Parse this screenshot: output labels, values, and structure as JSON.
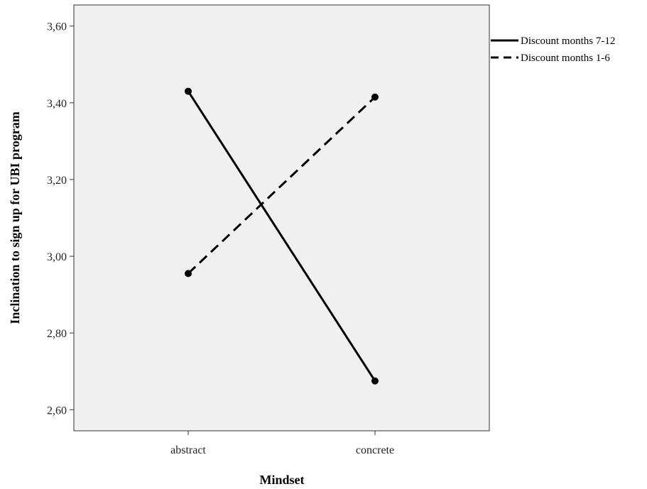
{
  "chart_data": {
    "type": "line",
    "xlabel": "Mindset",
    "ylabel": "Inclination to sign up for UBI program",
    "categories": [
      "abstract",
      "concrete"
    ],
    "ylim": [
      2.545,
      3.655
    ],
    "yticks": [
      "2,60",
      "2,80",
      "3,00",
      "3,20",
      "3,40",
      "3,60"
    ],
    "ytick_values": [
      2.6,
      2.8,
      3.0,
      3.2,
      3.4,
      3.6
    ],
    "grid": false,
    "legend_position": "outside-top-right",
    "series": [
      {
        "name": "Discount months 7-12",
        "style": "solid",
        "values": [
          3.43,
          2.675
        ]
      },
      {
        "name": "Discount months 1-6",
        "style": "dashed",
        "values": [
          2.955,
          3.415
        ]
      }
    ],
    "colors": {
      "plot_background": "#f0f0f0",
      "line": "#000000"
    }
  }
}
